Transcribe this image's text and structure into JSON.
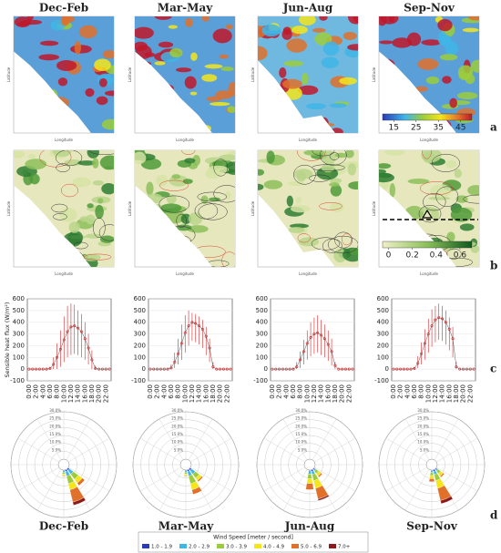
{
  "columns": [
    "Dec-Feb",
    "Mar-May",
    "Jun-Aug",
    "Sep-Nov"
  ],
  "panel_labels": [
    "a",
    "b",
    "c",
    "d"
  ],
  "map_axis": {
    "x_label": "Longitude",
    "y_label": "Latitude"
  },
  "colorbar_a": {
    "lim": [
      10,
      50
    ],
    "ticks": [
      15,
      25,
      35,
      45
    ]
  },
  "colorbar_b": {
    "lim": [
      -0.05,
      0.7
    ],
    "ticks": [
      0,
      0.2,
      0.4,
      0.6
    ]
  },
  "wind_legend": {
    "title": "Wind Speed [meter / second]"
  },
  "chart_data": [
    {
      "type": "box",
      "ylabel": "Sensible heat flux (W/m²)",
      "color": "#d62728",
      "categories": [
        "0:00",
        null,
        "2:00",
        null,
        "4:00",
        null,
        "6:00",
        null,
        "8:00",
        null,
        "10:00",
        null,
        "12:00",
        null,
        "14:00",
        null,
        "16:00",
        null,
        "18:00",
        null,
        "20:00",
        null,
        "22:00",
        null
      ],
      "values": [
        0,
        0,
        0,
        0,
        0,
        0,
        5,
        40,
        100,
        170,
        250,
        320,
        360,
        370,
        350,
        320,
        260,
        180,
        80,
        5,
        0,
        0,
        0,
        0
      ],
      "low": [
        0,
        0,
        0,
        0,
        0,
        0,
        0,
        0,
        0,
        20,
        60,
        100,
        120,
        130,
        120,
        100,
        80,
        40,
        0,
        0,
        0,
        0,
        0,
        0
      ],
      "high": [
        0,
        0,
        0,
        0,
        0,
        5,
        20,
        100,
        220,
        330,
        450,
        540,
        560,
        550,
        500,
        470,
        400,
        300,
        160,
        30,
        0,
        0,
        0,
        0
      ],
      "ylim": [
        -100,
        600
      ],
      "yticks": [
        -100,
        0,
        100,
        200,
        300,
        400,
        500,
        600
      ]
    },
    {
      "type": "box",
      "color": "#d62728",
      "categories": [
        "0:00",
        null,
        "2:00",
        null,
        "4:00",
        null,
        "6:00",
        null,
        "8:00",
        null,
        "10:00",
        null,
        "12:00",
        null,
        "14:00",
        null,
        "16:00",
        null,
        "18:00",
        null,
        "20:00",
        null,
        "22:00",
        null
      ],
      "values": [
        0,
        0,
        0,
        0,
        0,
        0,
        10,
        60,
        130,
        220,
        310,
        370,
        400,
        390,
        370,
        340,
        280,
        180,
        20,
        0,
        0,
        0,
        0,
        0
      ],
      "low": [
        0,
        0,
        0,
        0,
        0,
        0,
        0,
        10,
        40,
        80,
        140,
        200,
        240,
        230,
        210,
        180,
        120,
        60,
        0,
        0,
        0,
        0,
        0,
        0
      ],
      "high": [
        0,
        0,
        0,
        0,
        0,
        5,
        40,
        140,
        260,
        380,
        460,
        500,
        480,
        470,
        450,
        420,
        360,
        260,
        60,
        0,
        0,
        0,
        0,
        0
      ],
      "ylim": [
        -100,
        600
      ],
      "yticks": [
        -100,
        0,
        100,
        200,
        300,
        400,
        500,
        600
      ]
    },
    {
      "type": "box",
      "color": "#d62728",
      "categories": [
        "0:00",
        null,
        "2:00",
        null,
        "4:00",
        null,
        "6:00",
        null,
        "8:00",
        null,
        "10:00",
        null,
        "12:00",
        null,
        "14:00",
        null,
        "16:00",
        null,
        "18:00",
        null,
        "20:00",
        null,
        "22:00",
        null
      ],
      "values": [
        0,
        0,
        0,
        0,
        0,
        0,
        0,
        20,
        80,
        150,
        220,
        270,
        300,
        310,
        290,
        260,
        210,
        150,
        30,
        0,
        0,
        0,
        0,
        0
      ],
      "low": [
        0,
        0,
        0,
        0,
        0,
        0,
        0,
        0,
        10,
        40,
        80,
        110,
        130,
        140,
        120,
        100,
        70,
        30,
        0,
        0,
        0,
        0,
        0,
        0
      ],
      "high": [
        0,
        0,
        0,
        0,
        0,
        0,
        10,
        60,
        150,
        250,
        330,
        400,
        440,
        460,
        420,
        380,
        330,
        260,
        60,
        0,
        0,
        0,
        0,
        0
      ],
      "ylim": [
        -100,
        600
      ],
      "yticks": [
        -100,
        0,
        100,
        200,
        300,
        400,
        500,
        600
      ]
    },
    {
      "type": "box",
      "color": "#d62728",
      "categories": [
        "0:00",
        null,
        "2:00",
        null,
        "4:00",
        null,
        "6:00",
        null,
        "8:00",
        null,
        "10:00",
        null,
        "12:00",
        null,
        "14:00",
        null,
        "16:00",
        null,
        "18:00",
        null,
        "20:00",
        null,
        "22:00",
        null
      ],
      "values": [
        0,
        0,
        0,
        0,
        0,
        0,
        5,
        50,
        130,
        220,
        300,
        370,
        420,
        440,
        430,
        400,
        340,
        260,
        20,
        0,
        0,
        0,
        0,
        0
      ],
      "low": [
        0,
        0,
        0,
        0,
        0,
        0,
        0,
        10,
        40,
        80,
        140,
        190,
        230,
        250,
        240,
        210,
        160,
        100,
        0,
        0,
        0,
        0,
        0,
        0
      ],
      "high": [
        0,
        0,
        0,
        0,
        0,
        0,
        20,
        110,
        230,
        340,
        430,
        510,
        540,
        560,
        540,
        500,
        440,
        360,
        60,
        0,
        0,
        0,
        0,
        0
      ],
      "ylim": [
        -100,
        600
      ],
      "yticks": [
        -100,
        0,
        100,
        200,
        300,
        400,
        500,
        600
      ]
    },
    {
      "type": "rose",
      "title": "Dec-Feb",
      "categories": [
        "SE",
        "SSE",
        "S"
      ],
      "rlim": [
        0,
        30
      ],
      "rticks": [
        {
          "value": 5,
          "label": "5.0%"
        },
        {
          "value": 10,
          "label": "10.0%"
        },
        {
          "value": 15,
          "label": "15.0%"
        },
        {
          "value": 20,
          "label": "20.0%"
        },
        {
          "value": 25,
          "label": "25.0%"
        },
        {
          "value": 30,
          "label": "30.0%"
        }
      ],
      "series": [
        {
          "name": "1.0 - 1.9",
          "color": "#2b3bb5",
          "values": [
            1,
            1,
            0.5
          ]
        },
        {
          "name": "2.0 - 2.9",
          "color": "#3fb5e8",
          "values": [
            3,
            3,
            1
          ]
        },
        {
          "name": "3.0 - 3.9",
          "color": "#9ccc3c",
          "values": [
            4,
            5,
            1
          ]
        },
        {
          "name": "4.0 - 4.9",
          "color": "#f5e51b",
          "values": [
            3,
            4,
            1
          ]
        },
        {
          "name": "5.0 - 6.9",
          "color": "#e0702a",
          "values": [
            2,
            8,
            0.5
          ]
        },
        {
          "name": "7.0+",
          "color": "#8b1a1a",
          "values": [
            0,
            2,
            0
          ]
        }
      ]
    },
    {
      "type": "rose",
      "title": "Mar-May",
      "categories": [
        "SE",
        "SSE",
        "S"
      ],
      "rlim": [
        0,
        30
      ],
      "rticks": [
        {
          "value": 5,
          "label": "5.0%"
        },
        {
          "value": 10,
          "label": "10.0%"
        },
        {
          "value": 15,
          "label": "15.0%"
        },
        {
          "value": 20,
          "label": "20.0%"
        },
        {
          "value": 25,
          "label": "25.0%"
        },
        {
          "value": 30,
          "label": "30.0%"
        }
      ],
      "series": [
        {
          "name": "1.0 - 1.9",
          "color": "#2b3bb5",
          "values": [
            1,
            1,
            0.5
          ]
        },
        {
          "name": "2.0 - 2.9",
          "color": "#3fb5e8",
          "values": [
            3,
            3,
            1
          ]
        },
        {
          "name": "3.0 - 3.9",
          "color": "#9ccc3c",
          "values": [
            3,
            5,
            1
          ]
        },
        {
          "name": "4.0 - 4.9",
          "color": "#f5e51b",
          "values": [
            2,
            4,
            1
          ]
        },
        {
          "name": "5.0 - 6.9",
          "color": "#e0702a",
          "values": [
            1,
            3,
            0.5
          ]
        },
        {
          "name": "7.0+",
          "color": "#8b1a1a",
          "values": [
            0,
            0,
            0
          ]
        }
      ]
    },
    {
      "type": "rose",
      "title": "Jun-Aug",
      "categories": [
        "SE",
        "SSE",
        "S"
      ],
      "rlim": [
        0,
        30
      ],
      "rticks": [
        {
          "value": 5,
          "label": "5.0%"
        },
        {
          "value": 10,
          "label": "10.0%"
        },
        {
          "value": 15,
          "label": "15.0%"
        },
        {
          "value": 20,
          "label": "20.0%"
        },
        {
          "value": 25,
          "label": "25.0%"
        },
        {
          "value": 30,
          "label": "30.0%"
        }
      ],
      "series": [
        {
          "name": "1.0 - 1.9",
          "color": "#2b3bb5",
          "values": [
            0.5,
            1,
            0.5
          ]
        },
        {
          "name": "2.0 - 2.9",
          "color": "#3fb5e8",
          "values": [
            1,
            2,
            2
          ]
        },
        {
          "name": "3.0 - 3.9",
          "color": "#9ccc3c",
          "values": [
            2,
            4,
            3
          ]
        },
        {
          "name": "4.0 - 4.9",
          "color": "#f5e51b",
          "values": [
            2,
            5,
            3
          ]
        },
        {
          "name": "5.0 - 6.9",
          "color": "#e0702a",
          "values": [
            1,
            7,
            4
          ]
        },
        {
          "name": "7.0+",
          "color": "#8b1a1a",
          "values": [
            0,
            1,
            0
          ]
        }
      ]
    },
    {
      "type": "rose",
      "title": "Sep-Nov",
      "categories": [
        "SE",
        "SSE",
        "S"
      ],
      "rlim": [
        0,
        30
      ],
      "rticks": [
        {
          "value": 5,
          "label": "5.0%"
        },
        {
          "value": 10,
          "label": "10.0%"
        },
        {
          "value": 15,
          "label": "15.0%"
        },
        {
          "value": 20,
          "label": "20.0%"
        },
        {
          "value": 25,
          "label": "25.0%"
        },
        {
          "value": 30,
          "label": "30.0%"
        }
      ],
      "series": [
        {
          "name": "1.0 - 1.9",
          "color": "#2b3bb5",
          "values": [
            0.5,
            1,
            0.5
          ]
        },
        {
          "name": "2.0 - 2.9",
          "color": "#3fb5e8",
          "values": [
            1,
            2,
            1
          ]
        },
        {
          "name": "3.0 - 3.9",
          "color": "#9ccc3c",
          "values": [
            2,
            4,
            2
          ]
        },
        {
          "name": "4.0 - 4.9",
          "color": "#f5e51b",
          "values": [
            2,
            5,
            2
          ]
        },
        {
          "name": "5.0 - 6.9",
          "color": "#e0702a",
          "values": [
            1,
            8,
            2
          ]
        },
        {
          "name": "7.0+",
          "color": "#8b1a1a",
          "values": [
            0,
            2,
            0
          ]
        }
      ]
    }
  ]
}
